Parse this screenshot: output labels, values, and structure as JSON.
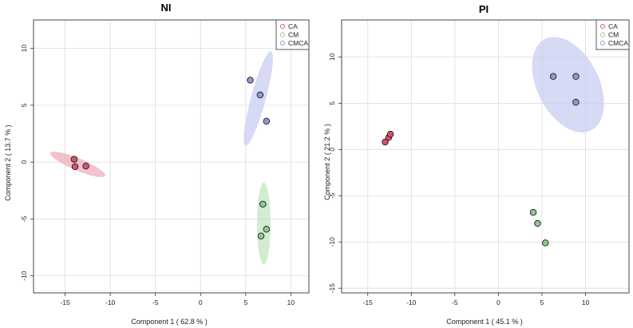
{
  "chart_data": [
    {
      "type": "scatter",
      "title": "NI",
      "xlabel": "Component 1 ( 62.8 % )",
      "ylabel": "Component 2 ( 13.7 % )",
      "xlim": [
        -18.5,
        12
      ],
      "ylim": [
        -11.5,
        12.5
      ],
      "xticks": [
        -15,
        -10,
        -5,
        0,
        5,
        10
      ],
      "yticks": [
        -10,
        -5,
        0,
        5,
        10
      ],
      "xtick_labels": [
        "-15",
        "-10",
        "-5",
        "0",
        "5",
        "10"
      ],
      "ytick_labels": [
        "-10",
        "-5",
        "0",
        "5",
        "10"
      ],
      "grid": true,
      "legend_position": "top-right",
      "series": [
        {
          "name": "CA",
          "color": "#d6546a",
          "ellipse_color": "#f0a8b8",
          "points": [
            [
              -14.0,
              0.25
            ],
            [
              -13.9,
              -0.4
            ],
            [
              -12.7,
              -0.35
            ]
          ],
          "ellipse": {
            "center": [
              -13.6,
              -0.2
            ],
            "semi_major": 3.2,
            "semi_minor": 0.55,
            "angle_deg": -18
          }
        },
        {
          "name": "CM",
          "color": "#8ec98e",
          "ellipse_color": "#bfe4bf",
          "points": [
            [
              6.9,
              -3.7
            ],
            [
              7.3,
              -5.9
            ],
            [
              6.7,
              -6.5
            ]
          ],
          "ellipse": {
            "center": [
              7.0,
              -5.4
            ],
            "semi_major": 3.6,
            "semi_minor": 0.75,
            "angle_deg": 90
          }
        },
        {
          "name": "CMCA",
          "color": "#8d99d4",
          "ellipse_color": "#c6cbef",
          "points": [
            [
              5.5,
              7.2
            ],
            [
              6.6,
              5.9
            ],
            [
              7.3,
              3.6
            ]
          ],
          "ellipse": {
            "center": [
              6.4,
              5.6
            ],
            "semi_major": 4.4,
            "semi_minor": 0.8,
            "angle_deg": 71
          }
        }
      ]
    },
    {
      "type": "scatter",
      "title": "PI",
      "xlabel": "Component 1 ( 45.1 % )",
      "ylabel": "Component 2 ( 21.2 % )",
      "xlim": [
        -18,
        15
      ],
      "ylim": [
        -15.5,
        14
      ],
      "xticks": [
        -15,
        -10,
        -5,
        0,
        5,
        10
      ],
      "yticks": [
        -15,
        -10,
        -5,
        0,
        5,
        10
      ],
      "xtick_labels": [
        "-15",
        "-10",
        "-5",
        "0",
        "5",
        "10"
      ],
      "ytick_labels": [
        "-15",
        "-10",
        "-5",
        "0",
        "5",
        "10"
      ],
      "grid": true,
      "legend_position": "top-right",
      "series": [
        {
          "name": "CA",
          "color": "#d6546a",
          "ellipse_color": "#f0a8b8",
          "points": [
            [
              -13.0,
              0.8
            ],
            [
              -12.6,
              1.3
            ],
            [
              -12.4,
              1.65
            ]
          ],
          "ellipse": {
            "center": [
              -12.7,
              1.2
            ],
            "semi_major": 0.75,
            "semi_minor": 0.22,
            "angle_deg": 50
          }
        },
        {
          "name": "CM",
          "color": "#8ec98e",
          "ellipse_color": "#bfe4bf",
          "points": [
            [
              4.0,
              -6.8
            ],
            [
              4.5,
              -8.0
            ],
            [
              5.4,
              -10.1
            ]
          ],
          "ellipse": {
            "center": [
              4.6,
              -8.3
            ],
            "semi_major": 0,
            "semi_minor": 0,
            "angle_deg": 0
          }
        },
        {
          "name": "CMCA",
          "color": "#8d99d4",
          "ellipse_color": "#c6cbef",
          "points": [
            [
              6.3,
              7.9
            ],
            [
              8.9,
              7.9
            ],
            [
              8.9,
              5.1
            ]
          ],
          "ellipse": {
            "center": [
              8.0,
              7.0
            ],
            "semi_major": 5.6,
            "semi_minor": 3.5,
            "angle_deg": -60
          }
        }
      ]
    }
  ]
}
